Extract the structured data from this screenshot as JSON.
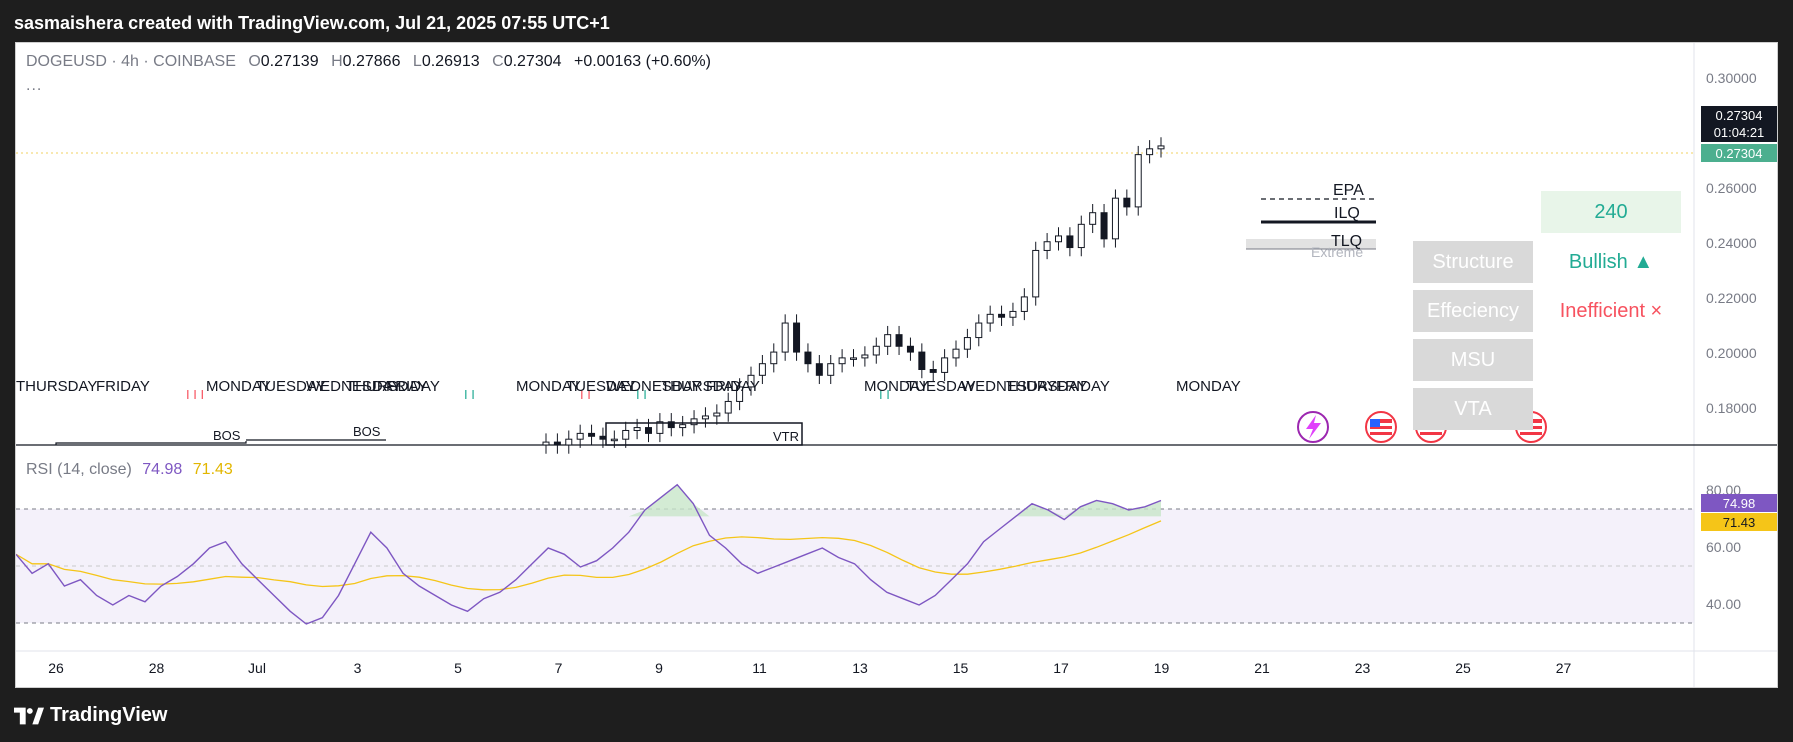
{
  "header": {
    "attribution": "sasmaishera created with TradingView.com, Jul 21, 2025 07:55 UTC+1"
  },
  "legend": {
    "symbol": "DOGEUSD",
    "interval": "4h",
    "exchange": "COINBASE",
    "o_label": "O",
    "o_val": "0.27139",
    "h_label": "H",
    "h_val": "0.27866",
    "l_label": "L",
    "l_val": "0.26913",
    "c_label": "C",
    "c_val": "0.27304",
    "change": "+0.00163 (+0.60%)",
    "more": "..."
  },
  "price_axis": {
    "ticks": [
      "0.30000",
      "0.28000",
      "0.26000",
      "0.24000",
      "0.22000",
      "0.20000",
      "0.18000"
    ],
    "last_price": "0.27304",
    "countdown": "01:04:21",
    "last_price_2": "0.27304"
  },
  "rsi": {
    "label": "RSI (14, close)",
    "value": "74.98",
    "ma_value": "71.43",
    "ticks": [
      "80.00",
      "60.00",
      "40.00"
    ],
    "tag_value": "74.98",
    "tag_ma": "71.43"
  },
  "time_axis": {
    "labels": [
      "26",
      "28",
      "Jul",
      "3",
      "5",
      "7",
      "9",
      "11",
      "13",
      "15",
      "17",
      "19",
      "21",
      "23",
      "25",
      "27"
    ]
  },
  "session_labels": {
    "labels": [
      "THURSDAY",
      "FRIDAY",
      "MONDAY",
      "TUESDAY",
      "WEDNESDAY",
      "THURSDAY",
      "FRIDAY",
      "MONDAY",
      "TUESDAY",
      "WEDNESDAY",
      "THURSDAY",
      "FRIDAY",
      "MONDAY",
      "TUESDAY",
      "WEDNESDAY",
      "THURSDAY",
      "FRIDAY",
      "MONDAY"
    ]
  },
  "annotations": {
    "epa": "EPA",
    "ilq": "ILQ",
    "tlq": "TLQ",
    "extreme": "Extreme",
    "bos1": "BOS",
    "bos2": "BOS",
    "vtr": "VTR",
    "mark_iii": "I I I",
    "mark_ii_1": "I I",
    "mark_ii_2": "I I",
    "mark_ii_3": "I I",
    "mark_ii_4": "I I"
  },
  "info_table": {
    "timeframe": "240",
    "rows": [
      {
        "label": "Structure",
        "value": "Bullish ▲",
        "color": "#22ab94"
      },
      {
        "label": "Effeciency",
        "value": "Inefficient ×",
        "color": "#f7525f"
      },
      {
        "label": "MSU",
        "value": "",
        "color": "#22ab94"
      },
      {
        "label": "VTA",
        "value": "",
        "color": "#22ab94"
      }
    ]
  },
  "branding": {
    "name": "TradingView"
  },
  "chart_data": {
    "type": "candlestick",
    "symbol": "DOGEUSD",
    "interval": "4h",
    "ylim": [
      0.17,
      0.305
    ],
    "x_ticks": [
      "26",
      "28",
      "Jul",
      "3",
      "5",
      "7",
      "9",
      "11",
      "13",
      "15",
      "17",
      "19",
      "21",
      "23",
      "25",
      "27"
    ],
    "y_ticks": [
      0.3,
      0.28,
      0.26,
      0.24,
      0.22,
      0.2,
      0.18
    ],
    "candles_close": [
      0.171,
      0.17,
      0.172,
      0.174,
      0.173,
      0.172,
      0.172,
      0.175,
      0.176,
      0.174,
      0.178,
      0.176,
      0.177,
      0.179,
      0.18,
      0.181,
      0.185,
      0.19,
      0.194,
      0.198,
      0.202,
      0.212,
      0.202,
      0.198,
      0.194,
      0.198,
      0.2,
      0.2,
      0.201,
      0.204,
      0.208,
      0.204,
      0.202,
      0.196,
      0.195,
      0.2,
      0.203,
      0.207,
      0.212,
      0.215,
      0.214,
      0.216,
      0.221,
      0.237,
      0.24,
      0.242,
      0.238,
      0.246,
      0.25,
      0.241,
      0.255,
      0.252,
      0.27,
      0.272,
      0.273
    ],
    "rsi": {
      "name": "RSI (14, close)",
      "ylim": [
        30,
        90
      ],
      "levels": [
        70,
        50,
        30
      ],
      "last": 74.98,
      "ma_last": 71.43
    }
  }
}
